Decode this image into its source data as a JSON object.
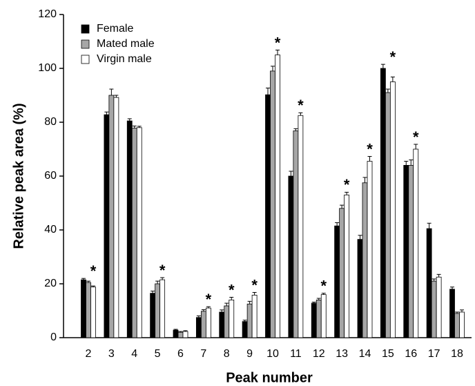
{
  "chart_data": {
    "type": "bar",
    "xlabel": "Peak number",
    "ylabel": "Relative peak area (%)",
    "categories": [
      "2",
      "3",
      "4",
      "5",
      "6",
      "7",
      "8",
      "9",
      "10",
      "11",
      "12",
      "13",
      "14",
      "15",
      "16",
      "17",
      "18"
    ],
    "series": [
      {
        "name": "Female",
        "color": "#000000",
        "values": [
          21.5,
          82.8,
          80.5,
          16.5,
          2.8,
          7.5,
          9.5,
          6,
          90.2,
          60,
          12.8,
          41.5,
          36.5,
          100,
          64,
          40.5,
          18
        ],
        "errors": [
          0.5,
          1,
          0.8,
          0.8,
          0.3,
          0.6,
          0.8,
          0.5,
          2.5,
          1.8,
          0.4,
          1.2,
          1.5,
          1.5,
          1.5,
          2,
          0.8
        ]
      },
      {
        "name": "Mated male",
        "color": "#a6a6a6",
        "values": [
          20.5,
          90,
          77.8,
          20,
          2,
          9.8,
          11.8,
          12.5,
          99,
          76.8,
          14,
          48,
          57.5,
          91,
          64,
          21,
          9
        ],
        "errors": [
          0.5,
          2.3,
          0.8,
          1,
          0.3,
          0.6,
          1,
          1,
          1.8,
          0.8,
          0.6,
          1.2,
          2,
          1.3,
          2,
          0.8,
          0.5
        ]
      },
      {
        "name": "Virgin male",
        "color": "#ffffff",
        "values": [
          18.8,
          89.2,
          78,
          21.5,
          2.3,
          11,
          14,
          15.8,
          105,
          82.5,
          16,
          53,
          65.5,
          95,
          70,
          22.5,
          9.5
        ],
        "errors": [
          0.4,
          0.8,
          0.5,
          0.8,
          0.3,
          0.5,
          1,
          1,
          1.8,
          1,
          0.5,
          1,
          1.8,
          1.8,
          1.8,
          1,
          0.8
        ]
      }
    ],
    "annotations": [
      {
        "label": "*",
        "category": "2"
      },
      {
        "label": "*",
        "category": "5"
      },
      {
        "label": "*",
        "category": "7"
      },
      {
        "label": "*",
        "category": "8"
      },
      {
        "label": "*",
        "category": "9"
      },
      {
        "label": "*",
        "category": "10"
      },
      {
        "label": "*",
        "category": "11"
      },
      {
        "label": "*",
        "category": "12"
      },
      {
        "label": "*",
        "category": "13"
      },
      {
        "label": "*",
        "category": "14"
      },
      {
        "label": "*",
        "category": "15"
      },
      {
        "label": "*",
        "category": "16"
      }
    ],
    "ylim": [
      0,
      120
    ],
    "yticks": [
      0,
      20,
      40,
      60,
      80,
      100,
      120
    ],
    "legend": "upper left",
    "grid": false
  }
}
